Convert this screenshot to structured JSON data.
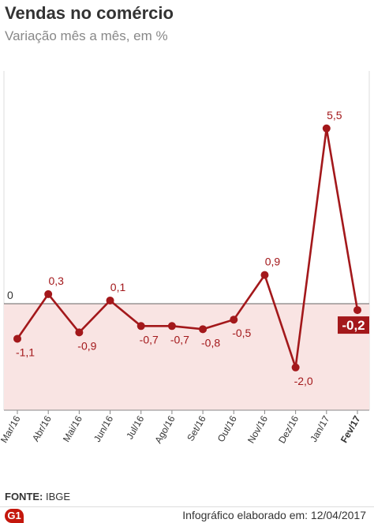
{
  "header": {
    "title": "Vendas no comércio",
    "subtitle": "Variação mês a mês, em %"
  },
  "footer": {
    "source_label": "FONTE:",
    "source_value": "IBGE",
    "logo": "G1",
    "credit": "Infográfico elaborado em: 12/04/2017"
  },
  "colors": {
    "line": "#a3181b",
    "negative_area": "#f9e4e3",
    "highlight_box": "#a3181b"
  },
  "chart_data": {
    "type": "line",
    "categories": [
      "Mar/16",
      "Abr/16",
      "Mai/16",
      "Jun/16",
      "Jul/16",
      "Ago/16",
      "Set/16",
      "Out/16",
      "Nov/16",
      "Dez/16",
      "Jan/17",
      "Fev/17"
    ],
    "values": [
      -1.1,
      0.3,
      -0.9,
      0.1,
      -0.7,
      -0.7,
      -0.8,
      -0.5,
      0.9,
      -2.0,
      5.5,
      -0.2
    ],
    "labels": [
      "-1,1",
      "0,3",
      "-0,9",
      "0,1",
      "-0,7",
      "-0,7",
      "-0,8",
      "-0,5",
      "0,9",
      "-2,0",
      "5,5",
      "-0,2"
    ],
    "zero_label": "0",
    "ylim": [
      -2.4,
      6.5
    ],
    "grid": false,
    "negative_region_shaded": true,
    "highlight_last": true
  }
}
